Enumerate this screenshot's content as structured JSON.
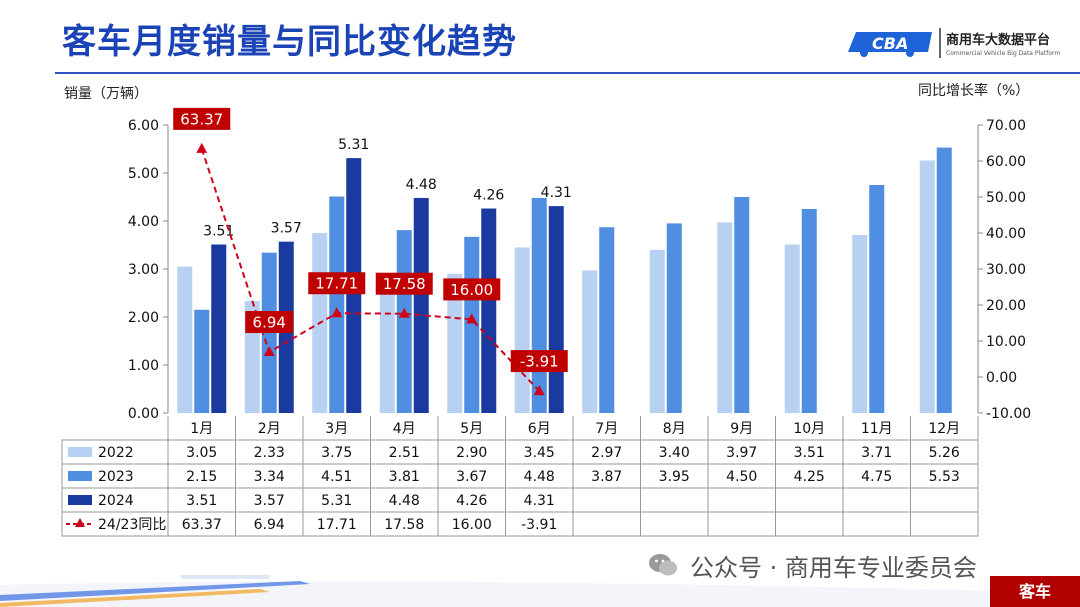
{
  "page": {
    "title": "客车月度销量与同比变化趋势",
    "logo_name": "商用车大数据平台",
    "logo_sub": "Commercial Vehicle Big Data Platform",
    "watermark": "公众号 · 商用车专业委员会",
    "tag": "客车"
  },
  "colors": {
    "title": "#1a43b6",
    "s2022": "#b8d0f2",
    "s2023": "#4f8ee0",
    "s2024": "#1b3aa0",
    "yoy": "#d0021b"
  },
  "chart_data": {
    "type": "bar",
    "title": "客车月度销量与同比变化趋势",
    "ylabel_left": "销量（万辆）",
    "ylabel_right": "同比增长率（%）",
    "ylim_left": [
      0,
      6
    ],
    "yticks_left": [
      "0.00",
      "1.00",
      "2.00",
      "3.00",
      "4.00",
      "5.00",
      "6.00"
    ],
    "ylim_right": [
      -10,
      70
    ],
    "yticks_right": [
      "-10.00",
      "0.00",
      "10.00",
      "20.00",
      "30.00",
      "40.00",
      "50.00",
      "60.00",
      "70.00"
    ],
    "categories": [
      "1月",
      "2月",
      "3月",
      "4月",
      "5月",
      "6月",
      "7月",
      "8月",
      "9月",
      "10月",
      "11月",
      "12月"
    ],
    "series": [
      {
        "name": "2022",
        "type": "bar",
        "color": "#b8d0f2",
        "values": [
          3.05,
          2.33,
          3.75,
          2.51,
          2.9,
          3.45,
          2.97,
          3.4,
          3.97,
          3.51,
          3.71,
          5.26
        ],
        "labels": [
          "3.05",
          "2.33",
          "3.75",
          "2.51",
          "2.90",
          "3.45",
          "2.97",
          "3.40",
          "3.97",
          "3.51",
          "3.71",
          "5.26"
        ]
      },
      {
        "name": "2023",
        "type": "bar",
        "color": "#4f8ee0",
        "values": [
          2.15,
          3.34,
          4.51,
          3.81,
          3.67,
          4.48,
          3.87,
          3.95,
          4.5,
          4.25,
          4.75,
          5.53
        ],
        "labels": [
          "2.15",
          "3.34",
          "4.51",
          "3.81",
          "3.67",
          "4.48",
          "3.87",
          "3.95",
          "4.50",
          "4.25",
          "4.75",
          "5.53"
        ]
      },
      {
        "name": "2024",
        "type": "bar",
        "color": "#1b3aa0",
        "values": [
          3.51,
          3.57,
          5.31,
          4.48,
          4.26,
          4.31,
          null,
          null,
          null,
          null,
          null,
          null
        ],
        "labels": [
          "3.51",
          "3.57",
          "5.31",
          "4.48",
          "4.26",
          "4.31",
          "",
          "",
          "",
          "",
          "",
          ""
        ]
      },
      {
        "name": "24/23同比",
        "type": "line",
        "axis": "right",
        "color": "#d0021b",
        "values": [
          63.37,
          6.94,
          17.71,
          17.58,
          16.0,
          -3.91,
          null,
          null,
          null,
          null,
          null,
          null
        ],
        "labels": [
          "63.37",
          "6.94",
          "17.71",
          "17.58",
          "16.00",
          "-3.91",
          "",
          "",
          "",
          "",
          "",
          ""
        ]
      }
    ],
    "data_labels_2024": [
      "3.51",
      "3.57",
      "5.31",
      "4.48",
      "4.26",
      "4.31"
    ],
    "data_labels_yoy": [
      "63.37",
      "6.94",
      "17.71",
      "17.58",
      "16.00",
      "-3.91"
    ],
    "legend": "table-below"
  }
}
